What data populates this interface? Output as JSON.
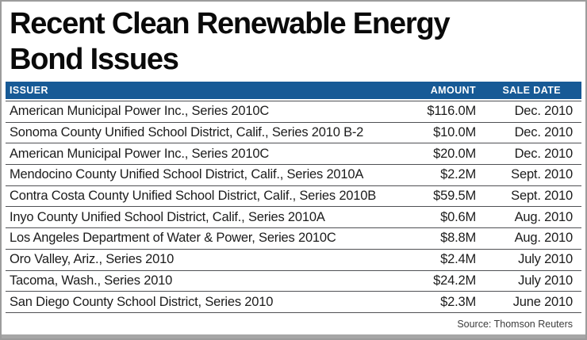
{
  "title": {
    "line1": "Recent Clean Renewable Energy",
    "line2": "Bond Issues"
  },
  "chart_data": {
    "type": "table",
    "title": "Recent Clean Renewable Energy Bond Issues",
    "columns": [
      "ISSUER",
      "AMOUNT",
      "SALE DATE"
    ],
    "rows": [
      {
        "issuer": "American Municipal Power Inc., Series 2010C",
        "amount": "$116.0M",
        "sale_date": "Dec. 2010"
      },
      {
        "issuer": "Sonoma County Unified School District, Calif., Series 2010 B-2",
        "amount": "$10.0M",
        "sale_date": "Dec. 2010"
      },
      {
        "issuer": "American Municipal Power Inc., Series 2010C",
        "amount": "$20.0M",
        "sale_date": "Dec. 2010"
      },
      {
        "issuer": "Mendocino County Unified School District, Calif., Series 2010A",
        "amount": "$2.2M",
        "sale_date": "Sept. 2010"
      },
      {
        "issuer": "Contra Costa County Unified School District, Calif., Series 2010B",
        "amount": "$59.5M",
        "sale_date": "Sept. 2010"
      },
      {
        "issuer": "Inyo County Unified School District, Calif., Series 2010A",
        "amount": "$0.6M",
        "sale_date": "Aug. 2010"
      },
      {
        "issuer": "Los Angeles Department of Water & Power, Series 2010C",
        "amount": "$8.8M",
        "sale_date": "Aug. 2010"
      },
      {
        "issuer": "Oro Valley, Ariz., Series 2010",
        "amount": "$2.4M",
        "sale_date": "July 2010"
      },
      {
        "issuer": "Tacoma, Wash., Series 2010",
        "amount": "$24.2M",
        "sale_date": "July 2010"
      },
      {
        "issuer": "San Diego County School District, Series 2010",
        "amount": "$2.3M",
        "sale_date": "June 2010"
      }
    ],
    "amounts_millions_usd": [
      116.0,
      10.0,
      20.0,
      2.2,
      59.5,
      0.6,
      8.8,
      2.4,
      24.2,
      2.3
    ],
    "source": "Source: Thomson Reuters"
  },
  "colors": {
    "header_bar": "#175a96",
    "header_text": "#ffffff",
    "row_line": "#4f5054",
    "outer_border": "#9c9c9c",
    "bottom_strip": "#a6a6a6",
    "body_text": "#1c1c1c"
  }
}
